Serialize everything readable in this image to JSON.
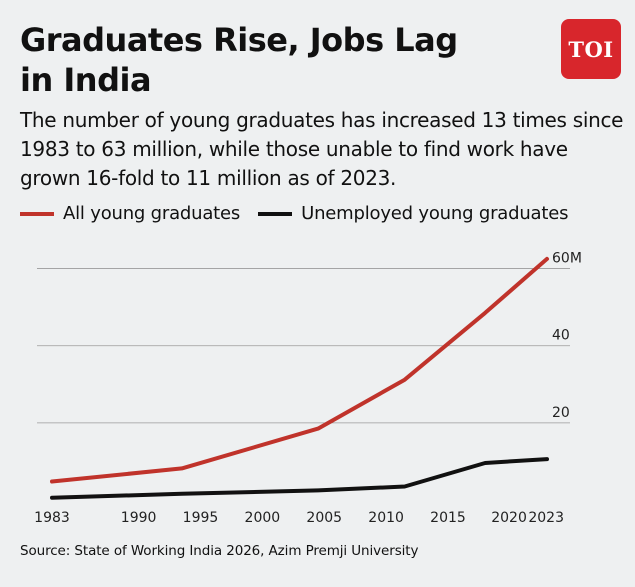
{
  "header": {
    "title": "Graduates Rise, Jobs Lag in India",
    "subtitle": "The number of young graduates has increased 13 times since 1983 to 63 million, while those unable to find work have grown 16-fold to 11 million as of 2023.",
    "logo_text": "TOI"
  },
  "source": "Source: State of Working India 2026, Azim Premji University",
  "colors": {
    "background": "#eef0f1",
    "graduates": "#c0332b",
    "unemployed": "#111111",
    "gridline": "#9a9a9a",
    "logo": "#d8262c"
  },
  "chart_data": {
    "type": "line",
    "title": "Graduates Rise, Jobs Lag in India",
    "xlabel": "",
    "ylabel": "",
    "xlim": [
      1983,
      2023
    ],
    "ylim": [
      0,
      63
    ],
    "x_ticks": [
      {
        "value": 1983,
        "label": "1983"
      },
      {
        "value": 1990,
        "label": "1990"
      },
      {
        "value": 1995,
        "label": "1995"
      },
      {
        "value": 2000,
        "label": "2000"
      },
      {
        "value": 2005,
        "label": "2005"
      },
      {
        "value": 2010,
        "label": "2010"
      },
      {
        "value": 2015,
        "label": "2015"
      },
      {
        "value": 2020,
        "label": "2020"
      },
      {
        "value": 2023,
        "label": "2023"
      }
    ],
    "y_ticks": [
      {
        "value": 20,
        "label": "20"
      },
      {
        "value": 40,
        "label": "40"
      },
      {
        "value": 60,
        "label": "60M"
      }
    ],
    "grid": true,
    "legend_position": "top-left",
    "series": [
      {
        "name": "All young graduates",
        "color": "#c0332b",
        "points": [
          {
            "x": 1983,
            "y": 4.8
          },
          {
            "x": 1993.5,
            "y": 8.2
          },
          {
            "x": 2004.5,
            "y": 18.5
          },
          {
            "x": 2011.5,
            "y": 31.2
          },
          {
            "x": 2018,
            "y": 48.5
          },
          {
            "x": 2023,
            "y": 62.5
          }
        ]
      },
      {
        "name": "Unemployed young graduates",
        "color": "#111111",
        "points": [
          {
            "x": 1983,
            "y": 0.6
          },
          {
            "x": 1993.5,
            "y": 1.6
          },
          {
            "x": 2004.5,
            "y": 2.5
          },
          {
            "x": 2011.5,
            "y": 3.5
          },
          {
            "x": 2018,
            "y": 9.6
          },
          {
            "x": 2023,
            "y": 10.6
          }
        ]
      }
    ]
  }
}
